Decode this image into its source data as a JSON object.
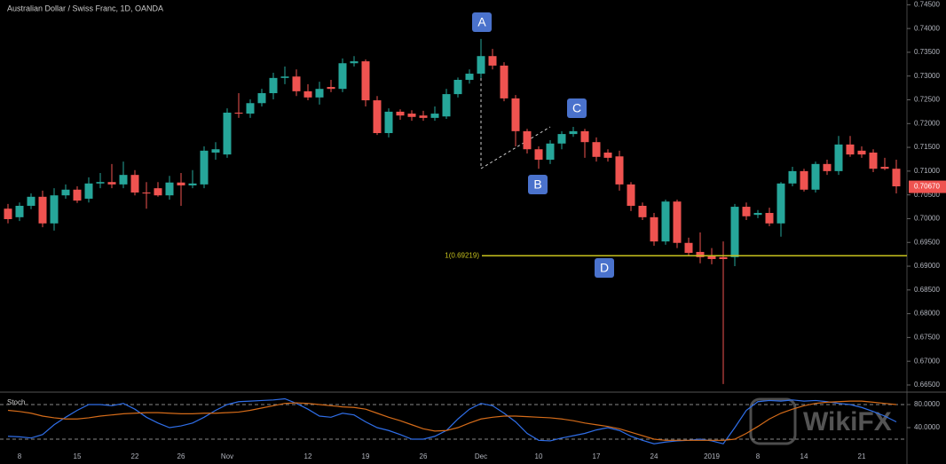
{
  "chart_data": [
    {
      "type": "candlestick",
      "title": "Australian Dollar / Swiss Franc, 1D, OANDA",
      "categories": [
        null,
        "8",
        null,
        null,
        null,
        null,
        "15",
        null,
        null,
        null,
        null,
        "22",
        null,
        null,
        null,
        "26",
        null,
        null,
        null,
        "Nov",
        null,
        null,
        null,
        null,
        null,
        null,
        "12",
        null,
        null,
        null,
        null,
        "19",
        null,
        null,
        null,
        null,
        "26",
        null,
        null,
        null,
        null,
        "Dec",
        null,
        null,
        null,
        null,
        "10",
        null,
        null,
        null,
        null,
        "17",
        null,
        null,
        null,
        null,
        "24",
        null,
        null,
        null,
        null,
        "2019",
        null,
        null,
        null,
        "8",
        null,
        null,
        null,
        "14",
        null,
        null,
        null,
        null,
        "21",
        null,
        null,
        null
      ],
      "open": [
        0.7021,
        0.7003,
        0.7027,
        0.7046,
        0.699,
        0.7049,
        0.7061,
        0.7042,
        0.7074,
        0.7077,
        0.7072,
        0.7092,
        0.7055,
        0.7064,
        0.7049,
        0.7076,
        0.707,
        0.7072,
        0.7139,
        0.7135,
        0.7223,
        0.7221,
        0.7243,
        0.7264,
        0.7296,
        0.7299,
        0.7268,
        0.7255,
        0.7277,
        0.7273,
        0.7327,
        0.7331,
        0.7249,
        0.718,
        0.7225,
        0.7221,
        0.7217,
        0.7212,
        0.7215,
        0.7262,
        0.7292,
        0.7305,
        0.7342,
        0.7322,
        0.7253,
        0.7184,
        0.7146,
        0.7124,
        0.7158,
        0.7178,
        0.7184,
        0.7161,
        0.7139,
        0.7131,
        0.7072,
        0.7027,
        0.7003,
        0.6952,
        0.7036,
        0.6949,
        0.693,
        0.6923,
        0.6919,
        0.6919,
        0.7025,
        0.7008,
        0.7012,
        0.699,
        0.7074,
        0.71,
        0.7061,
        0.7115,
        0.71,
        0.7156,
        0.7143,
        0.7139,
        0.7109,
        0.7105
      ],
      "high": [
        0.7031,
        0.7034,
        0.7053,
        0.7059,
        0.7064,
        0.7072,
        0.7068,
        0.7087,
        0.7096,
        0.7115,
        0.712,
        0.7102,
        0.7077,
        0.7077,
        0.709,
        0.7096,
        0.7102,
        0.7152,
        0.7161,
        0.7232,
        0.7264,
        0.7251,
        0.7273,
        0.7307,
        0.732,
        0.7314,
        0.7283,
        0.7288,
        0.7292,
        0.7337,
        0.7342,
        0.7335,
        0.7258,
        0.7232,
        0.723,
        0.7228,
        0.7227,
        0.7236,
        0.7273,
        0.7297,
        0.7314,
        0.7378,
        0.7357,
        0.7329,
        0.726,
        0.7189,
        0.7152,
        0.7165,
        0.7184,
        0.7193,
        0.7189,
        0.7171,
        0.7146,
        0.7143,
        0.7077,
        0.7034,
        0.7012,
        0.704,
        0.704,
        0.696,
        0.6971,
        0.6938,
        0.6952,
        0.7031,
        0.7034,
        0.7018,
        0.7023,
        0.7077,
        0.7109,
        0.7105,
        0.712,
        0.7124,
        0.7174,
        0.7174,
        0.7152,
        0.7146,
        0.7128,
        0.7124
      ],
      "low": [
        0.699,
        0.6995,
        0.702,
        0.6982,
        0.6975,
        0.7042,
        0.7033,
        0.7034,
        0.7064,
        0.7064,
        0.7064,
        0.7049,
        0.7021,
        0.7046,
        0.704,
        0.7027,
        0.7064,
        0.7064,
        0.7124,
        0.7128,
        0.7212,
        0.7212,
        0.7236,
        0.7251,
        0.7283,
        0.7258,
        0.7249,
        0.724,
        0.7266,
        0.7266,
        0.732,
        0.7236,
        0.7176,
        0.7171,
        0.7208,
        0.7206,
        0.7206,
        0.7206,
        0.721,
        0.7255,
        0.7284,
        0.7296,
        0.7314,
        0.7247,
        0.7152,
        0.7137,
        0.7105,
        0.7115,
        0.7146,
        0.7172,
        0.7128,
        0.712,
        0.712,
        0.7059,
        0.7016,
        0.6997,
        0.6943,
        0.6945,
        0.6938,
        0.6923,
        0.6906,
        0.6904,
        0.6652,
        0.69,
        0.6997,
        0.7001,
        0.6984,
        0.6962,
        0.7068,
        0.7057,
        0.7055,
        0.7092,
        0.7092,
        0.713,
        0.7128,
        0.7098,
        0.7102,
        0.7053
      ],
      "close": [
        0.6999,
        0.7027,
        0.7046,
        0.699,
        0.7049,
        0.7061,
        0.7038,
        0.7074,
        0.7077,
        0.7072,
        0.7092,
        0.7055,
        0.7053,
        0.7049,
        0.7076,
        0.707,
        0.7074,
        0.7143,
        0.7146,
        0.7223,
        0.7221,
        0.7243,
        0.7264,
        0.7296,
        0.7299,
        0.7268,
        0.7255,
        0.7273,
        0.7273,
        0.7327,
        0.7331,
        0.7249,
        0.718,
        0.7225,
        0.7217,
        0.7214,
        0.7212,
        0.7221,
        0.7262,
        0.7292,
        0.7305,
        0.7342,
        0.7322,
        0.7253,
        0.7184,
        0.7146,
        0.7124,
        0.7158,
        0.7178,
        0.7184,
        0.7161,
        0.713,
        0.7128,
        0.7072,
        0.7027,
        0.7003,
        0.6952,
        0.7036,
        0.6949,
        0.6928,
        0.6919,
        0.6915,
        0.6915,
        0.7025,
        0.7005,
        0.7012,
        0.699,
        0.7074,
        0.71,
        0.7061,
        0.7115,
        0.71,
        0.7156,
        0.7135,
        0.7135,
        0.7105,
        0.7105,
        0.7068
      ],
      "up_color": "#26a69a",
      "down_color": "#ef5350",
      "ylim": [
        0.6635,
        0.746
      ],
      "yticks": [
        {
          "value": 0.745,
          "label": "0.74500"
        },
        {
          "value": 0.74,
          "label": "0.74000"
        },
        {
          "value": 0.735,
          "label": "0.73500"
        },
        {
          "value": 0.73,
          "label": "0.73000"
        },
        {
          "value": 0.725,
          "label": "0.72500"
        },
        {
          "value": 0.72,
          "label": "0.72000"
        },
        {
          "value": 0.715,
          "label": "0.71500"
        },
        {
          "value": 0.71,
          "label": "0.71000"
        },
        {
          "value": 0.705,
          "label": "0.70500"
        },
        {
          "value": 0.7,
          "label": "0.70000"
        },
        {
          "value": 0.695,
          "label": "0.69500"
        },
        {
          "value": 0.69,
          "label": "0.69000"
        },
        {
          "value": 0.685,
          "label": "0.68500"
        },
        {
          "value": 0.68,
          "label": "0.68000"
        },
        {
          "value": 0.675,
          "label": "0.67500"
        },
        {
          "value": 0.67,
          "label": "0.67000"
        },
        {
          "value": 0.665,
          "label": "0.66500"
        }
      ],
      "annotations": [
        "A",
        "B",
        "C",
        "D"
      ],
      "fib_level": {
        "value": 0.69219,
        "label": "1(0.69219)"
      },
      "last_price": {
        "value": 0.7067,
        "label": "0.70670"
      },
      "watermark": "WikiFX"
    },
    {
      "type": "line",
      "title": "Stoch",
      "series": [
        {
          "color": "#2f6ee8",
          "values": [
            25,
            24,
            22,
            28,
            45,
            58,
            70,
            80,
            80,
            78,
            82,
            72,
            58,
            48,
            40,
            43,
            48,
            58,
            70,
            80,
            85,
            86,
            87,
            88,
            90,
            82,
            72,
            60,
            58,
            65,
            62,
            50,
            40,
            35,
            28,
            20,
            20,
            25,
            35,
            55,
            72,
            82,
            78,
            65,
            50,
            30,
            18,
            17,
            22,
            26,
            30,
            36,
            40,
            35,
            25,
            18,
            12,
            15,
            17,
            18,
            20,
            17,
            12,
            40,
            70,
            85,
            87,
            86,
            88,
            86,
            87,
            85,
            82,
            80,
            75,
            68,
            60,
            50
          ]
        },
        {
          "color": "#d46b19",
          "values": [
            70,
            68,
            65,
            60,
            57,
            55,
            55,
            57,
            60,
            62,
            64,
            65,
            66,
            66,
            65,
            64,
            64,
            65,
            65,
            66,
            67,
            70,
            74,
            78,
            82,
            83,
            82,
            80,
            78,
            76,
            75,
            72,
            65,
            58,
            52,
            45,
            38,
            34,
            35,
            40,
            48,
            55,
            58,
            60,
            60,
            59,
            58,
            57,
            55,
            52,
            48,
            45,
            42,
            38,
            32,
            26,
            20,
            18,
            18,
            18,
            18,
            18,
            18,
            20,
            30,
            42,
            55,
            65,
            72,
            78,
            82,
            84,
            85,
            86,
            86,
            84,
            82,
            80
          ]
        }
      ],
      "ylim": [
        0,
        100
      ],
      "yticks": [
        {
          "value": 80,
          "label": "80.0000"
        },
        {
          "value": 40,
          "label": "40.0000"
        }
      ],
      "bands": [
        80,
        20
      ]
    }
  ]
}
